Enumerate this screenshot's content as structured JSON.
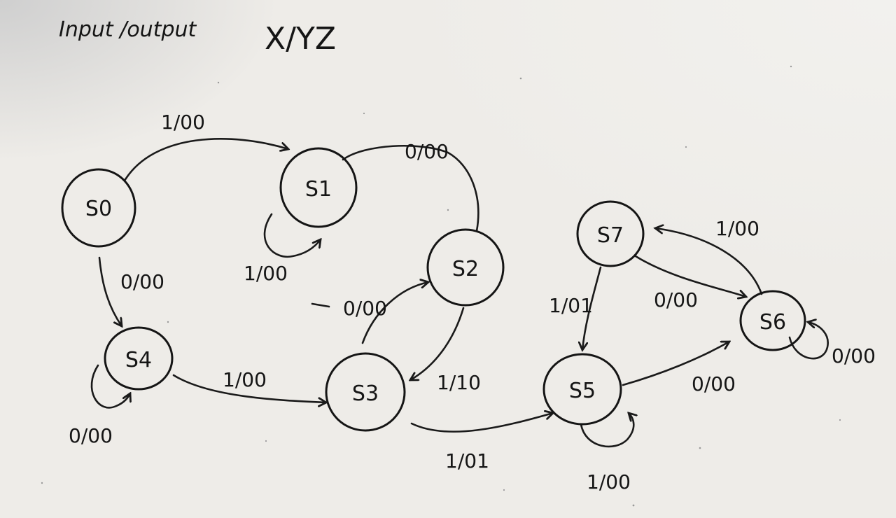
{
  "title": {
    "prefix": "Input /output",
    "format": "X/YZ"
  },
  "states": [
    {
      "id": "s0",
      "label": "S0"
    },
    {
      "id": "s1",
      "label": "S1"
    },
    {
      "id": "s2",
      "label": "S2"
    },
    {
      "id": "s3",
      "label": "S3"
    },
    {
      "id": "s4",
      "label": "S4"
    },
    {
      "id": "s5",
      "label": "S5"
    },
    {
      "id": "s6",
      "label": "S6"
    },
    {
      "id": "s7",
      "label": "S7"
    }
  ],
  "transitions": [
    {
      "id": "s0-s1",
      "from": "S0",
      "to": "S1",
      "label": "1/00"
    },
    {
      "id": "s1-s2",
      "from": "S1",
      "to": "S2",
      "label": "0/00"
    },
    {
      "id": "s1-s1",
      "from": "S1",
      "to": "S1",
      "label": "1/00"
    },
    {
      "id": "s0-s4",
      "from": "S0",
      "to": "S4",
      "label": "0/00"
    },
    {
      "id": "s4-s4",
      "from": "S4",
      "to": "S4",
      "label": "0/00"
    },
    {
      "id": "s4-s3",
      "from": "S4",
      "to": "S3",
      "label": "1/00"
    },
    {
      "id": "s3-s2",
      "from": "S3",
      "to": "S2",
      "label": "0/00"
    },
    {
      "id": "s2-s3",
      "from": "S2",
      "to": "S3",
      "label": "1/10"
    },
    {
      "id": "s3-s5",
      "from": "S3",
      "to": "S5",
      "label": "1/01"
    },
    {
      "id": "s5-s5",
      "from": "S5",
      "to": "S5",
      "label": "1/00"
    },
    {
      "id": "s5-s6",
      "from": "S5",
      "to": "S6",
      "label": "0/00"
    },
    {
      "id": "s7-s5",
      "from": "S7",
      "to": "S5",
      "label": "1/01"
    },
    {
      "id": "s7-s6",
      "from": "S7",
      "to": "S6",
      "label": "0/00"
    },
    {
      "id": "s6-s7",
      "from": "S6",
      "to": "S7",
      "label": "1/00"
    },
    {
      "id": "s6-s6",
      "from": "S6",
      "to": "S6",
      "label": "0/00"
    }
  ],
  "colors": {
    "ink": "#151515",
    "paper": "#eeece8"
  }
}
